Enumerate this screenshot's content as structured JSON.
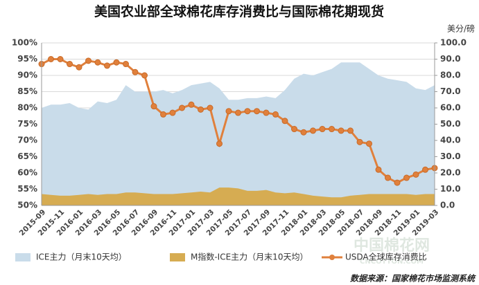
{
  "chart_data": {
    "type": "combo",
    "title": "美国农业部全球棉花库存消费比与国际棉花期现货",
    "y2label": "美分/磅",
    "source": "数据来源：国家棉花市场监测系统",
    "watermark": "中国棉花网",
    "watermark_url": "CNCOTTON.COM",
    "categories": [
      "2015-09",
      null,
      "2015-11",
      null,
      "2016-01",
      null,
      "2016-03",
      null,
      "2016-05",
      null,
      "2016-07",
      null,
      "2016-09",
      null,
      "2016-11",
      null,
      "2017-01",
      null,
      "2017-03",
      null,
      "2017-05",
      null,
      "2017-07",
      null,
      "2017-09",
      null,
      "2017-11",
      null,
      "2018-01",
      null,
      "2018-03",
      null,
      "2018-05",
      null,
      "2018-07",
      null,
      "2018-09",
      null,
      "2018-11",
      null,
      "2019-01",
      null,
      "2019-03"
    ],
    "ylim": [
      50,
      100
    ],
    "yticks": [
      {
        "value": 50,
        "label": "50%"
      },
      {
        "value": 55,
        "label": "55%"
      },
      {
        "value": 60,
        "label": "60%"
      },
      {
        "value": 65,
        "label": "65%"
      },
      {
        "value": 70,
        "label": "70%"
      },
      {
        "value": 75,
        "label": "75%"
      },
      {
        "value": 80,
        "label": "80%"
      },
      {
        "value": 85,
        "label": "85%"
      },
      {
        "value": 90,
        "label": "90%"
      },
      {
        "value": 95,
        "label": "95%"
      },
      {
        "value": 100,
        "label": "100%"
      }
    ],
    "y2lim": [
      0,
      100
    ],
    "y2ticks": [
      {
        "value": 0,
        "label": "0.0"
      },
      {
        "value": 10,
        "label": "10.0"
      },
      {
        "value": 20,
        "label": "20.0"
      },
      {
        "value": 30,
        "label": "30.0"
      },
      {
        "value": 40,
        "label": "40.0"
      },
      {
        "value": 50,
        "label": "50.0"
      },
      {
        "value": 60,
        "label": "60.0"
      },
      {
        "value": 70,
        "label": "70.0"
      },
      {
        "value": 80,
        "label": "80.0"
      },
      {
        "value": 90,
        "label": "90.0"
      },
      {
        "value": 100,
        "label": "100.0"
      }
    ],
    "grid": true,
    "series": [
      {
        "name": "ICE主力（月末10天均）",
        "kind": "area",
        "axis": "y2",
        "color": "#c9dcea",
        "values": [
          60,
          62,
          62,
          63,
          60,
          59,
          64,
          63,
          65,
          74,
          70,
          70,
          70,
          71,
          69,
          71,
          74,
          75,
          76,
          72,
          65,
          65,
          66,
          66,
          67,
          66,
          71,
          78,
          81,
          80,
          82,
          84,
          88,
          88,
          88,
          84,
          80,
          78,
          77,
          76,
          72,
          71,
          74
        ]
      },
      {
        "name": "M指数-ICE主力（月末10天均）",
        "kind": "area",
        "axis": "y2",
        "color": "#d6ac52",
        "values": [
          7,
          6.5,
          6,
          6,
          6.5,
          7,
          6.5,
          7,
          7,
          8,
          8,
          7.5,
          7,
          7,
          7,
          7.5,
          8,
          8.5,
          8,
          11,
          11,
          10.5,
          9,
          9,
          9.5,
          8,
          7.5,
          8,
          7,
          6,
          5.5,
          5,
          5,
          6,
          6.5,
          7,
          7,
          7,
          7,
          7,
          6.5,
          7,
          7
        ]
      },
      {
        "name": "USDA全球库存消费比",
        "kind": "line",
        "axis": "y",
        "color": "#e0803c",
        "values": [
          93.5,
          95,
          95,
          93.5,
          92.5,
          94.5,
          94,
          93,
          94,
          93.5,
          91,
          90,
          80.5,
          78,
          78.5,
          80,
          81,
          79.5,
          80,
          69,
          79,
          78.5,
          79,
          79,
          78.5,
          78,
          76,
          73.5,
          72.5,
          73,
          73.5,
          73.5,
          73,
          73,
          69.5,
          69,
          61,
          58.5,
          57,
          58.5,
          59.5,
          61,
          61.5
        ]
      }
    ]
  }
}
